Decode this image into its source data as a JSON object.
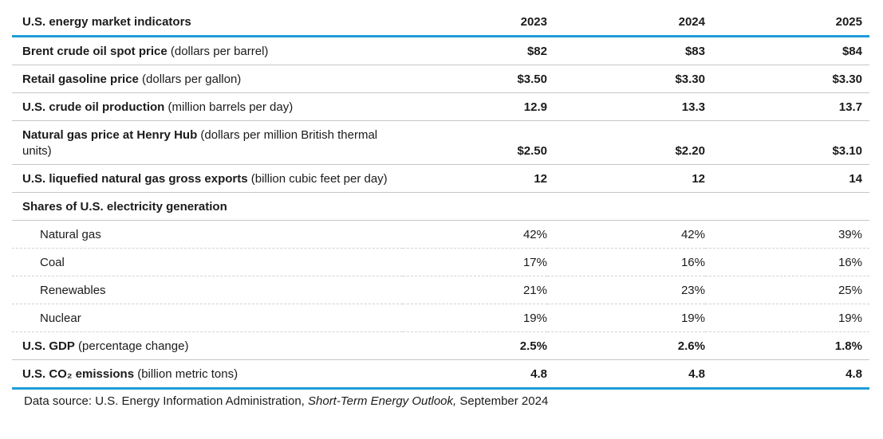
{
  "colors": {
    "accent_blue": "#1f9bd7",
    "separator_solid_gray": "#c6c6c6",
    "separator_dashed_gray": "#d2d2d2",
    "text": "#1b1b1b"
  },
  "table": {
    "title": "U.S. energy market indicators",
    "year_columns": [
      "2023",
      "2024",
      "2025"
    ],
    "rows": [
      {
        "type": "main",
        "label": "Brent crude oil spot price",
        "unit": " (dollars per barrel)",
        "values": [
          "$82",
          "$83",
          "$84"
        ]
      },
      {
        "type": "main",
        "label": "Retail gasoline price",
        "unit": " (dollars per gallon)",
        "values": [
          "$3.50",
          "$3.30",
          "$3.30"
        ]
      },
      {
        "type": "main",
        "label": "U.S. crude oil production",
        "unit": " (million barrels per day)",
        "values": [
          "12.9",
          "13.3",
          "13.7"
        ]
      },
      {
        "type": "main",
        "label": "Natural gas price at Henry Hub",
        "unit": " (dollars per million British thermal units)",
        "values": [
          "$2.50",
          "$2.20",
          "$3.10"
        ]
      },
      {
        "type": "main",
        "label": "U.S. liquefied natural gas gross exports",
        "unit": " (billion cubic feet per day)",
        "values": [
          "12",
          "12",
          "14"
        ]
      },
      {
        "type": "section",
        "label": "Shares of U.S. electricity generation",
        "unit": "",
        "values": [
          "",
          "",
          ""
        ]
      },
      {
        "type": "sub",
        "label": "Natural gas",
        "unit": "",
        "values": [
          "42%",
          "42%",
          "39%"
        ]
      },
      {
        "type": "sub",
        "label": "Coal",
        "unit": "",
        "values": [
          "17%",
          "16%",
          "16%"
        ]
      },
      {
        "type": "sub",
        "label": "Renewables",
        "unit": "",
        "values": [
          "21%",
          "23%",
          "25%"
        ]
      },
      {
        "type": "sub",
        "label": "Nuclear",
        "unit": "",
        "values": [
          "19%",
          "19%",
          "19%"
        ]
      },
      {
        "type": "main",
        "label": "U.S. GDP",
        "unit": " (percentage change)",
        "values": [
          "2.5%",
          "2.6%",
          "1.8%"
        ]
      },
      {
        "type": "last",
        "label": "U.S. CO₂ emissions",
        "unit": " (billion metric tons)",
        "values": [
          "4.8",
          "4.8",
          "4.8"
        ]
      }
    ]
  },
  "footer": {
    "prefix": "Data source: U.S. Energy Information Administration, ",
    "publication": "Short-Term Energy Outlook,",
    "suffix": " September 2024"
  }
}
